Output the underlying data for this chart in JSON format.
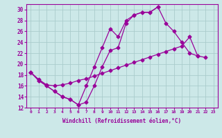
{
  "bg_color": "#cce8e8",
  "grid_color": "#aacccc",
  "line_color": "#990099",
  "xmin": -0.5,
  "xmax": 23.5,
  "ymin": 12,
  "ymax": 31,
  "yticks": [
    12,
    14,
    16,
    18,
    20,
    22,
    24,
    26,
    28,
    30
  ],
  "xticks": [
    0,
    1,
    2,
    3,
    4,
    5,
    6,
    7,
    8,
    9,
    10,
    11,
    12,
    13,
    14,
    15,
    16,
    17,
    18,
    19,
    20,
    21,
    22,
    23
  ],
  "xlabel": "Windchill (Refroidissement éolien,°C)",
  "line1_x": [
    0,
    1,
    2,
    3,
    4,
    5,
    6,
    7,
    8,
    9,
    10,
    11,
    12,
    13,
    14,
    15,
    16,
    17,
    18,
    19,
    20,
    21
  ],
  "line1_y": [
    18.5,
    17.0,
    16.0,
    15.0,
    14.0,
    13.5,
    12.5,
    16.0,
    19.5,
    23.0,
    26.5,
    25.0,
    28.0,
    29.0,
    29.5,
    29.5,
    30.5,
    27.5,
    26.0,
    24.0,
    22.0,
    21.5
  ],
  "line2_x": [
    0,
    1,
    2,
    3,
    4,
    5,
    6,
    7,
    8,
    9,
    10,
    11,
    12,
    13,
    14,
    15,
    16,
    17,
    18,
    19,
    20,
    21,
    22
  ],
  "line2_y": [
    18.5,
    17.2,
    16.2,
    16.0,
    16.2,
    16.5,
    17.0,
    17.3,
    17.8,
    18.3,
    18.8,
    19.3,
    19.8,
    20.3,
    20.8,
    21.3,
    21.8,
    22.3,
    22.8,
    23.3,
    25.0,
    21.5,
    21.2
  ],
  "line3_x": [
    0,
    1,
    2,
    3,
    4,
    5,
    6,
    7,
    8,
    9,
    10,
    11,
    12,
    13,
    14,
    15,
    16
  ],
  "line3_y": [
    18.5,
    17.0,
    16.0,
    15.0,
    14.0,
    13.5,
    12.5,
    13.0,
    16.0,
    19.5,
    22.5,
    23.0,
    27.5,
    29.0,
    29.5,
    29.5,
    30.5
  ]
}
